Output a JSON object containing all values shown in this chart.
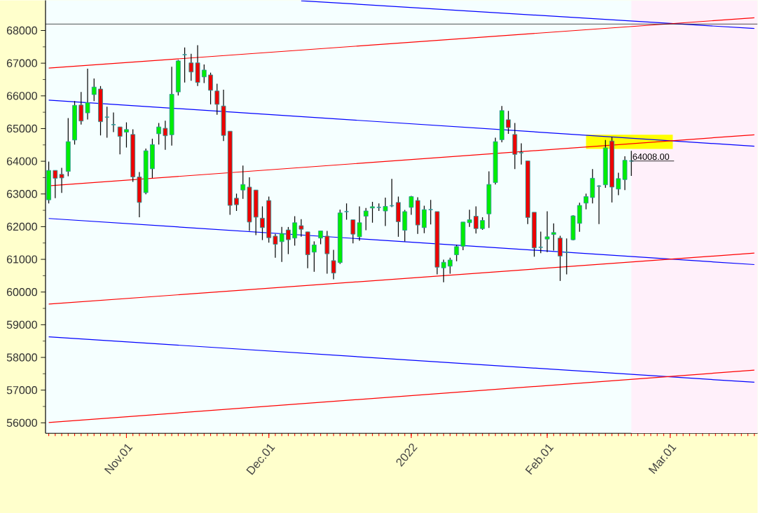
{
  "chart_data": {
    "type": "candlestick",
    "categories": [
      null,
      null,
      null,
      null,
      null,
      null,
      null,
      null,
      null,
      null,
      null,
      null,
      "Nov.01",
      null,
      null,
      null,
      null,
      null,
      null,
      null,
      null,
      null,
      null,
      null,
      null,
      null,
      null,
      null,
      null,
      null,
      null,
      null,
      null,
      null,
      "Dec.01",
      null,
      null,
      null,
      null,
      null,
      null,
      null,
      null,
      null,
      null,
      null,
      null,
      null,
      null,
      null,
      null,
      null,
      null,
      null,
      null,
      null,
      "2022",
      null,
      null,
      null,
      null,
      null,
      null,
      null,
      null,
      null,
      null,
      null,
      null,
      null,
      null,
      null,
      null,
      null,
      null,
      null,
      null,
      "Feb.01",
      null,
      null,
      null,
      null,
      null,
      null,
      null,
      null,
      null,
      null,
      null,
      null,
      null,
      null,
      null,
      null,
      null,
      null,
      "Mar.01",
      null,
      null,
      null,
      null,
      null,
      null,
      null,
      null,
      null,
      null,
      null,
      null,
      null
    ],
    "ohlc": [
      [
        62820,
        63990,
        62710,
        63720
      ],
      [
        63720,
        63720,
        62870,
        63480
      ],
      [
        63600,
        63800,
        63030,
        63490
      ],
      [
        63690,
        65320,
        63540,
        64600
      ],
      [
        64650,
        65840,
        64510,
        65710
      ],
      [
        65720,
        66120,
        65120,
        65230
      ],
      [
        65480,
        66830,
        65280,
        65790
      ],
      [
        66040,
        66530,
        65840,
        66270
      ],
      [
        66210,
        66300,
        64790,
        65210
      ],
      [
        65350,
        65670,
        64720,
        65350
      ],
      [
        65120,
        65490,
        64890,
        65120
      ],
      [
        65050,
        65050,
        64210,
        64760
      ],
      [
        64890,
        65190,
        64420,
        64970
      ],
      [
        64820,
        64980,
        63370,
        63520
      ],
      [
        63520,
        63670,
        62290,
        62740
      ],
      [
        63040,
        64390,
        62990,
        64320
      ],
      [
        63770,
        64690,
        63490,
        64510
      ],
      [
        64840,
        65170,
        64510,
        65050
      ],
      [
        65010,
        65240,
        64350,
        64780
      ],
      [
        64810,
        66890,
        64480,
        66050
      ],
      [
        66120,
        67100,
        66010,
        67070
      ],
      [
        67260,
        67480,
        66410,
        67260
      ],
      [
        67010,
        67290,
        66460,
        66730
      ],
      [
        67010,
        67550,
        66300,
        66410
      ],
      [
        66580,
        66960,
        66390,
        66790
      ],
      [
        66640,
        66710,
        65740,
        66170
      ],
      [
        66150,
        66370,
        65420,
        65740
      ],
      [
        65690,
        66190,
        64620,
        64790
      ],
      [
        64920,
        64920,
        62360,
        62650
      ],
      [
        62870,
        63010,
        62480,
        62670
      ],
      [
        63120,
        63870,
        62850,
        63290
      ],
      [
        63210,
        63510,
        61870,
        62140
      ],
      [
        63120,
        63120,
        61740,
        62290
      ],
      [
        62260,
        62620,
        61590,
        61970
      ],
      [
        62800,
        62920,
        61510,
        61660
      ],
      [
        61710,
        61780,
        61050,
        61460
      ],
      [
        61540,
        61990,
        60920,
        61790
      ],
      [
        61900,
        61990,
        61160,
        61600
      ],
      [
        61650,
        62320,
        61420,
        62120
      ],
      [
        62030,
        62230,
        61690,
        61920
      ],
      [
        61840,
        61840,
        60730,
        61140
      ],
      [
        61220,
        61550,
        60620,
        61440
      ],
      [
        61650,
        61870,
        61460,
        61870
      ],
      [
        61710,
        61870,
        60560,
        61170
      ],
      [
        60960,
        61290,
        60390,
        60580
      ],
      [
        60900,
        62520,
        60860,
        62420
      ],
      [
        62460,
        62710,
        62210,
        62460
      ],
      [
        62210,
        62210,
        61490,
        61770
      ],
      [
        61690,
        62620,
        61570,
        62120
      ],
      [
        62320,
        62570,
        61890,
        62480
      ],
      [
        62570,
        62760,
        62120,
        62610
      ],
      [
        62590,
        62710,
        62480,
        62590
      ],
      [
        62480,
        62890,
        62020,
        62620
      ],
      [
        62640,
        63460,
        62600,
        62640
      ],
      [
        62740,
        62920,
        61690,
        62150
      ],
      [
        61890,
        62510,
        61550,
        62460
      ],
      [
        62590,
        62940,
        62360,
        62920
      ],
      [
        62800,
        62900,
        61780,
        62050
      ],
      [
        61970,
        62640,
        61800,
        62520
      ],
      [
        62520,
        62820,
        62070,
        62520
      ],
      [
        62460,
        62460,
        60540,
        60760
      ],
      [
        60740,
        60990,
        60300,
        60910
      ],
      [
        60790,
        61050,
        60560,
        60980
      ],
      [
        61140,
        61440,
        60940,
        61390
      ],
      [
        61400,
        62140,
        61280,
        62140
      ],
      [
        62120,
        62520,
        61990,
        62210
      ],
      [
        62320,
        62620,
        61790,
        61940
      ],
      [
        61940,
        62290,
        61900,
        62190
      ],
      [
        62390,
        63690,
        61960,
        63290
      ],
      [
        63350,
        64720,
        63290,
        64600
      ],
      [
        64660,
        65690,
        64580,
        65550
      ],
      [
        65270,
        65540,
        64840,
        65030
      ],
      [
        64820,
        65170,
        63760,
        64210
      ],
      [
        64260,
        64550,
        63900,
        64260
      ],
      [
        64010,
        64010,
        62080,
        62280
      ],
      [
        62440,
        62440,
        61080,
        61350
      ],
      [
        61370,
        61850,
        61190,
        61370
      ],
      [
        61620,
        62470,
        61220,
        61690
      ],
      [
        61760,
        62100,
        61270,
        61820
      ],
      [
        61650,
        61720,
        60340,
        61100
      ],
      [
        61220,
        61640,
        60540,
        61220
      ],
      [
        61600,
        62350,
        61580,
        62330
      ],
      [
        62100,
        62730,
        61840,
        62650
      ],
      [
        62720,
        63010,
        62530,
        62920
      ],
      [
        62890,
        63760,
        62710,
        63480
      ],
      [
        63240,
        63270,
        62080,
        63240
      ],
      [
        63280,
        64650,
        63190,
        64410
      ],
      [
        64620,
        64740,
        62740,
        63210
      ],
      [
        63150,
        63650,
        62960,
        63470
      ],
      [
        63440,
        64150,
        63120,
        64030
      ],
      [
        64008,
        64320,
        63550,
        64008
      ],
      null,
      null,
      null,
      null,
      null,
      null,
      null,
      null,
      null,
      null,
      null,
      null,
      null,
      null,
      null,
      null,
      null,
      null,
      null
    ],
    "series": [
      {
        "type": "line",
        "color": "#0000ff",
        "values": [
          null,
          null,
          null,
          null,
          null,
          null,
          null,
          null,
          null,
          null,
          null,
          null,
          null,
          null,
          null,
          null,
          null,
          null,
          null,
          null,
          null,
          null,
          null,
          null,
          null,
          null,
          null,
          null,
          null,
          null,
          null,
          null,
          null,
          null,
          null,
          null,
          null,
          null,
          null,
          68910,
          null,
          null,
          null,
          null,
          null,
          null,
          null,
          null,
          null,
          null,
          null,
          null,
          null,
          null,
          null,
          null,
          null,
          null,
          null,
          null,
          null,
          null,
          null,
          null,
          null,
          null,
          null,
          null,
          null,
          null,
          null,
          null,
          null,
          null,
          null,
          null,
          null,
          null,
          null,
          null,
          null,
          null,
          null,
          null,
          null,
          null,
          null,
          null,
          null,
          null,
          null,
          null,
          null,
          null,
          null,
          null,
          null,
          null,
          null,
          null,
          null,
          null,
          null,
          null,
          null,
          null,
          null,
          null,
          null,
          68060
        ]
      },
      {
        "type": "line",
        "color": "#ff0000",
        "values": [
          66850,
          null,
          null,
          null,
          null,
          null,
          null,
          null,
          null,
          null,
          null,
          null,
          null,
          null,
          null,
          null,
          null,
          null,
          null,
          null,
          null,
          null,
          null,
          null,
          null,
          null,
          null,
          null,
          null,
          null,
          null,
          null,
          null,
          null,
          null,
          null,
          null,
          null,
          null,
          null,
          null,
          null,
          null,
          null,
          null,
          null,
          null,
          null,
          null,
          null,
          null,
          null,
          null,
          null,
          null,
          null,
          null,
          null,
          null,
          null,
          null,
          null,
          null,
          null,
          null,
          null,
          null,
          null,
          null,
          null,
          null,
          null,
          null,
          null,
          null,
          null,
          null,
          null,
          null,
          null,
          null,
          null,
          null,
          null,
          null,
          null,
          null,
          null,
          null,
          null,
          null,
          null,
          null,
          null,
          null,
          null,
          null,
          null,
          null,
          null,
          null,
          null,
          null,
          null,
          null,
          null,
          null,
          null,
          null,
          68390
        ]
      },
      {
        "type": "line",
        "color": "#0000ff",
        "values": [
          65870,
          null,
          null,
          null,
          null,
          null,
          null,
          null,
          null,
          null,
          null,
          null,
          null,
          null,
          null,
          null,
          null,
          null,
          null,
          null,
          null,
          null,
          null,
          null,
          null,
          null,
          null,
          null,
          null,
          null,
          null,
          null,
          null,
          null,
          null,
          null,
          null,
          null,
          null,
          null,
          null,
          null,
          null,
          null,
          null,
          null,
          null,
          null,
          null,
          null,
          null,
          null,
          null,
          null,
          null,
          null,
          null,
          null,
          null,
          null,
          null,
          null,
          null,
          null,
          null,
          null,
          null,
          null,
          null,
          null,
          null,
          null,
          null,
          null,
          null,
          null,
          null,
          null,
          null,
          null,
          null,
          null,
          null,
          null,
          null,
          null,
          null,
          null,
          null,
          null,
          null,
          null,
          null,
          null,
          null,
          null,
          null,
          null,
          null,
          null,
          null,
          null,
          null,
          null,
          null,
          null,
          null,
          null,
          null,
          64460
        ]
      },
      {
        "type": "line",
        "color": "#ff0000",
        "values": [
          63250,
          null,
          null,
          null,
          null,
          null,
          null,
          null,
          null,
          null,
          null,
          null,
          null,
          null,
          null,
          null,
          null,
          null,
          null,
          null,
          null,
          null,
          null,
          null,
          null,
          null,
          null,
          null,
          null,
          null,
          null,
          null,
          null,
          null,
          null,
          null,
          null,
          null,
          null,
          null,
          null,
          null,
          null,
          null,
          null,
          null,
          null,
          null,
          null,
          null,
          null,
          null,
          null,
          null,
          null,
          null,
          null,
          null,
          null,
          null,
          null,
          null,
          null,
          null,
          null,
          null,
          null,
          null,
          null,
          null,
          null,
          null,
          null,
          null,
          null,
          null,
          null,
          null,
          null,
          null,
          null,
          null,
          null,
          null,
          null,
          null,
          null,
          null,
          null,
          null,
          null,
          null,
          null,
          null,
          null,
          null,
          null,
          null,
          null,
          null,
          null,
          null,
          null,
          null,
          null,
          null,
          null,
          null,
          null,
          64810
        ]
      },
      {
        "type": "line",
        "color": "#0000ff",
        "values": [
          62250,
          null,
          null,
          null,
          null,
          null,
          null,
          null,
          null,
          null,
          null,
          null,
          null,
          null,
          null,
          null,
          null,
          null,
          null,
          null,
          null,
          null,
          null,
          null,
          null,
          null,
          null,
          null,
          null,
          null,
          null,
          null,
          null,
          null,
          null,
          null,
          null,
          null,
          null,
          null,
          null,
          null,
          null,
          null,
          null,
          null,
          null,
          null,
          null,
          null,
          null,
          null,
          null,
          null,
          null,
          null,
          null,
          null,
          null,
          null,
          null,
          null,
          null,
          null,
          null,
          null,
          null,
          null,
          null,
          null,
          null,
          null,
          null,
          null,
          null,
          null,
          null,
          null,
          null,
          null,
          null,
          null,
          null,
          null,
          null,
          null,
          null,
          null,
          null,
          null,
          null,
          null,
          null,
          null,
          null,
          null,
          null,
          null,
          null,
          null,
          null,
          null,
          null,
          null,
          null,
          null,
          null,
          null,
          null,
          60840
        ]
      },
      {
        "type": "line",
        "color": "#ff0000",
        "values": [
          59630,
          null,
          null,
          null,
          null,
          null,
          null,
          null,
          null,
          null,
          null,
          null,
          null,
          null,
          null,
          null,
          null,
          null,
          null,
          null,
          null,
          null,
          null,
          null,
          null,
          null,
          null,
          null,
          null,
          null,
          null,
          null,
          null,
          null,
          null,
          null,
          null,
          null,
          null,
          null,
          null,
          null,
          null,
          null,
          null,
          null,
          null,
          null,
          null,
          null,
          null,
          null,
          null,
          null,
          null,
          null,
          null,
          null,
          null,
          null,
          null,
          null,
          null,
          null,
          null,
          null,
          null,
          null,
          null,
          null,
          null,
          null,
          null,
          null,
          null,
          null,
          null,
          null,
          null,
          null,
          null,
          null,
          null,
          null,
          null,
          null,
          null,
          null,
          null,
          null,
          null,
          null,
          null,
          null,
          null,
          null,
          null,
          null,
          null,
          null,
          null,
          null,
          null,
          null,
          null,
          null,
          null,
          null,
          null,
          61190
        ]
      },
      {
        "type": "line",
        "color": "#0000ff",
        "values": [
          58630,
          null,
          null,
          null,
          null,
          null,
          null,
          null,
          null,
          null,
          null,
          null,
          null,
          null,
          null,
          null,
          null,
          null,
          null,
          null,
          null,
          null,
          null,
          null,
          null,
          null,
          null,
          null,
          null,
          null,
          null,
          null,
          null,
          null,
          null,
          null,
          null,
          null,
          null,
          null,
          null,
          null,
          null,
          null,
          null,
          null,
          null,
          null,
          null,
          null,
          null,
          null,
          null,
          null,
          null,
          null,
          null,
          null,
          null,
          null,
          null,
          null,
          null,
          null,
          null,
          null,
          null,
          null,
          null,
          null,
          null,
          null,
          null,
          null,
          null,
          null,
          null,
          null,
          null,
          null,
          null,
          null,
          null,
          null,
          null,
          null,
          null,
          null,
          null,
          null,
          null,
          null,
          null,
          null,
          null,
          null,
          null,
          null,
          null,
          null,
          null,
          null,
          null,
          null,
          null,
          null,
          null,
          null,
          null,
          57240
        ]
      },
      {
        "type": "line",
        "color": "#ff0000",
        "values": [
          56010,
          null,
          null,
          null,
          null,
          null,
          null,
          null,
          null,
          null,
          null,
          null,
          null,
          null,
          null,
          null,
          null,
          null,
          null,
          null,
          null,
          null,
          null,
          null,
          null,
          null,
          null,
          null,
          null,
          null,
          null,
          null,
          null,
          null,
          null,
          null,
          null,
          null,
          null,
          null,
          null,
          null,
          null,
          null,
          null,
          null,
          null,
          null,
          null,
          null,
          null,
          null,
          null,
          null,
          null,
          null,
          null,
          null,
          null,
          null,
          null,
          null,
          null,
          null,
          null,
          null,
          null,
          null,
          null,
          null,
          null,
          null,
          null,
          null,
          null,
          null,
          null,
          null,
          null,
          null,
          null,
          null,
          null,
          null,
          null,
          null,
          null,
          null,
          null,
          null,
          null,
          null,
          null,
          null,
          null,
          null,
          null,
          null,
          null,
          null,
          null,
          null,
          null,
          null,
          null,
          null,
          null,
          null,
          null,
          57610
        ]
      }
    ],
    "ylim": [
      55680,
      68920
    ],
    "yticks": [
      56000,
      57000,
      58000,
      59000,
      60000,
      61000,
      62000,
      63000,
      64000,
      65000,
      66000,
      67000,
      68000
    ],
    "ref_lines": [
      {
        "axis": "y",
        "value": 68200,
        "color": "#000000"
      }
    ],
    "bands": [
      {
        "axis": "y",
        "from": 64380,
        "to": 64810,
        "color": "#ffff00"
      }
    ],
    "annotations": [
      "64008.00"
    ]
  }
}
